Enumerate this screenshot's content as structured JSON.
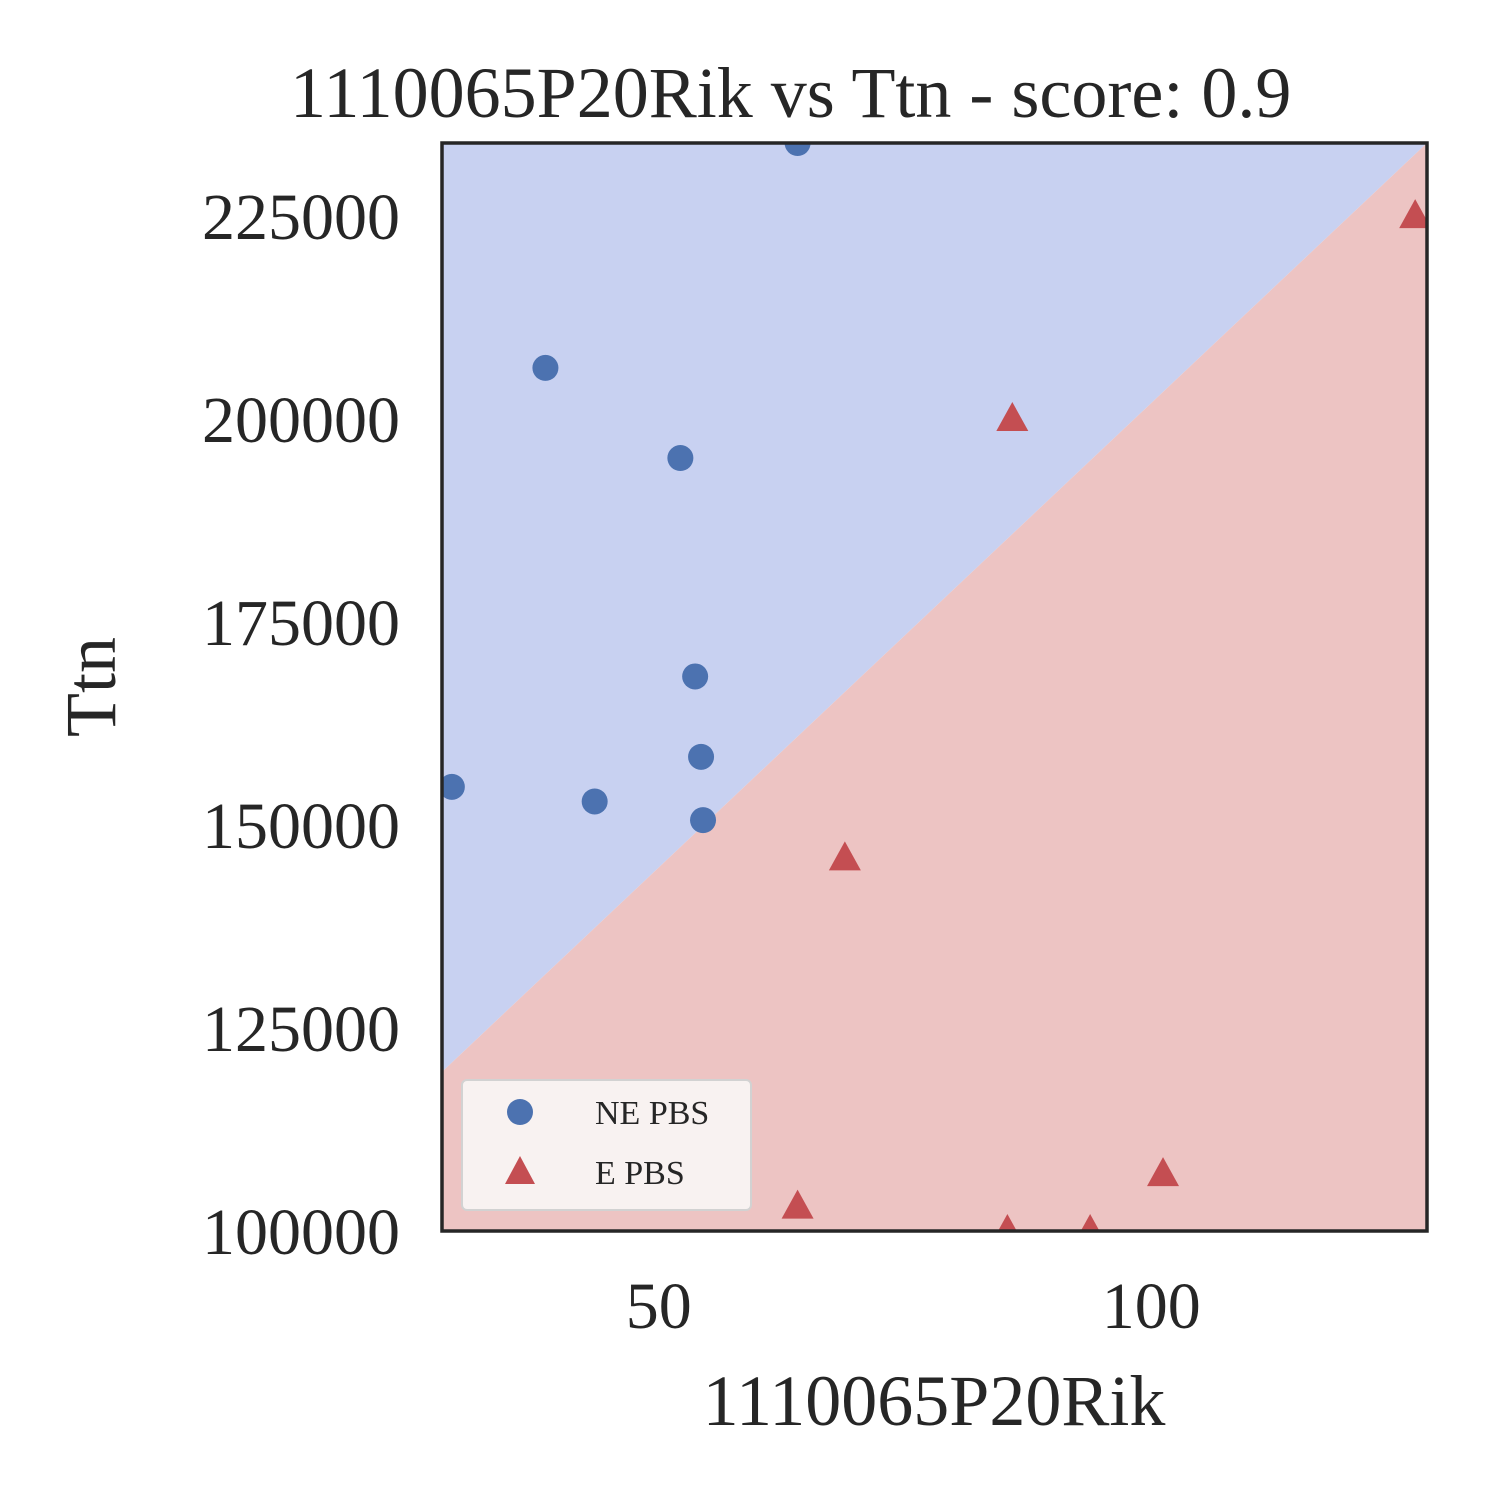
{
  "chart_data": {
    "type": "scatter",
    "title": "1110065P20Rik vs Ttn - score: 0.9",
    "xlabel": "1110065P20Rik",
    "ylabel": "Ttn",
    "xlim": [
      28,
      128
    ],
    "ylim": [
      100000,
      234000
    ],
    "xticks": [
      50,
      100
    ],
    "xtick_labels": [
      "50",
      "100"
    ],
    "yticks": [
      100000,
      125000,
      150000,
      175000,
      200000,
      225000
    ],
    "ytick_labels": [
      "100000",
      "125000",
      "150000",
      "175000",
      "200000",
      "225000"
    ],
    "grid": false,
    "legend_position": "lower-left",
    "decision_regions": {
      "boundary_line": {
        "from": [
          28,
          119600
        ],
        "to": [
          128,
          234000
        ]
      },
      "upper_region_color": "#c8d1f1",
      "lower_region_color": "#edc4c3"
    },
    "series": [
      {
        "name": "NE PBS",
        "marker": "circle",
        "color": "#4c72b0",
        "points": [
          [
            29,
            154700
          ],
          [
            38.5,
            206300
          ],
          [
            43.5,
            152900
          ],
          [
            52.2,
            195200
          ],
          [
            53.7,
            168300
          ],
          [
            54.3,
            158400
          ],
          [
            54.5,
            150600
          ],
          [
            64.1,
            234000
          ]
        ]
      },
      {
        "name": "E PBS",
        "marker": "triangle",
        "color": "#c44e52",
        "points": [
          [
            64.1,
            103000
          ],
          [
            68.9,
            145900
          ],
          [
            85.4,
            100000
          ],
          [
            85.9,
            200000
          ],
          [
            93.8,
            100000
          ],
          [
            101.2,
            107000
          ],
          [
            126.8,
            225000
          ]
        ]
      }
    ]
  }
}
